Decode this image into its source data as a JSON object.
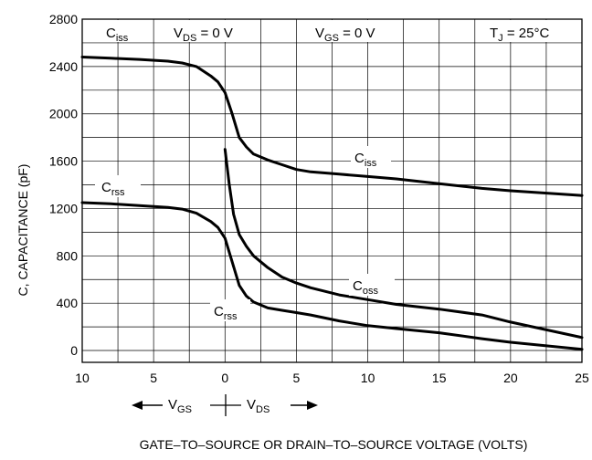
{
  "chart_data": {
    "type": "line",
    "title": "",
    "xlabel": "GATE–TO–SOURCE OR DRAIN–TO–SOURCE VOLTAGE (VOLTS)",
    "ylabel": "C, CAPACITANCE (pF)",
    "ylim": [
      -100,
      2800
    ],
    "y_ticks": [
      "0",
      "400",
      "800",
      "1200",
      "1600",
      "2000",
      "2400",
      "2800"
    ],
    "x_ticks": [
      "10",
      "5",
      "0",
      "5",
      "10",
      "15",
      "20",
      "25"
    ],
    "x_axis_note": "left of 0: V_GS (volts), right of 0: V_DS (volts); x values below are signed with V_GS negative",
    "grid": true,
    "header_labels": {
      "ciss": {
        "main": "C",
        "sub": "iss"
      },
      "vds": {
        "main": "V",
        "sub": "DS",
        "rest": " = 0 V"
      },
      "vgs": {
        "main": "V",
        "sub": "GS",
        "rest": " = 0 V"
      },
      "tj": {
        "main": "T",
        "sub": "J",
        "rest": " =  25°C"
      }
    },
    "direction_labels": {
      "vgs": {
        "main": "V",
        "sub": "GS"
      },
      "vds": {
        "main": "V",
        "sub": "DS"
      }
    },
    "series": [
      {
        "name": "Ciss",
        "label": {
          "main": "C",
          "sub": "iss"
        },
        "x": [
          -10,
          -8,
          -6,
          -4,
          -3,
          -2,
          -1,
          -0.5,
          0,
          0.5,
          1,
          1.5,
          2,
          3,
          4,
          5,
          6,
          8,
          10,
          12,
          15,
          18,
          20,
          25
        ],
        "y": [
          2480,
          2470,
          2460,
          2445,
          2430,
          2400,
          2320,
          2270,
          2180,
          2000,
          1800,
          1720,
          1660,
          1610,
          1570,
          1530,
          1510,
          1490,
          1470,
          1450,
          1410,
          1370,
          1350,
          1310
        ]
      },
      {
        "name": "Coss",
        "label": {
          "main": "C",
          "sub": "oss"
        },
        "x": [
          0,
          0.3,
          0.6,
          1,
          1.5,
          2,
          3,
          4,
          5,
          6,
          8,
          10,
          12,
          15,
          18,
          20,
          25
        ],
        "y": [
          1700,
          1400,
          1150,
          980,
          880,
          800,
          700,
          620,
          570,
          530,
          470,
          430,
          390,
          350,
          300,
          240,
          110
        ]
      },
      {
        "name": "Crss",
        "label": {
          "main": "C",
          "sub": "rss"
        },
        "x": [
          -10,
          -8,
          -6,
          -4,
          -3,
          -2,
          -1,
          -0.5,
          0,
          0.5,
          1,
          1.5,
          2,
          3,
          4,
          5,
          6,
          8,
          10,
          12,
          15,
          18,
          20,
          25
        ],
        "y": [
          1250,
          1240,
          1225,
          1210,
          1195,
          1160,
          1090,
          1040,
          950,
          750,
          550,
          460,
          410,
          360,
          340,
          320,
          300,
          250,
          210,
          185,
          150,
          100,
          70,
          10
        ]
      }
    ]
  }
}
